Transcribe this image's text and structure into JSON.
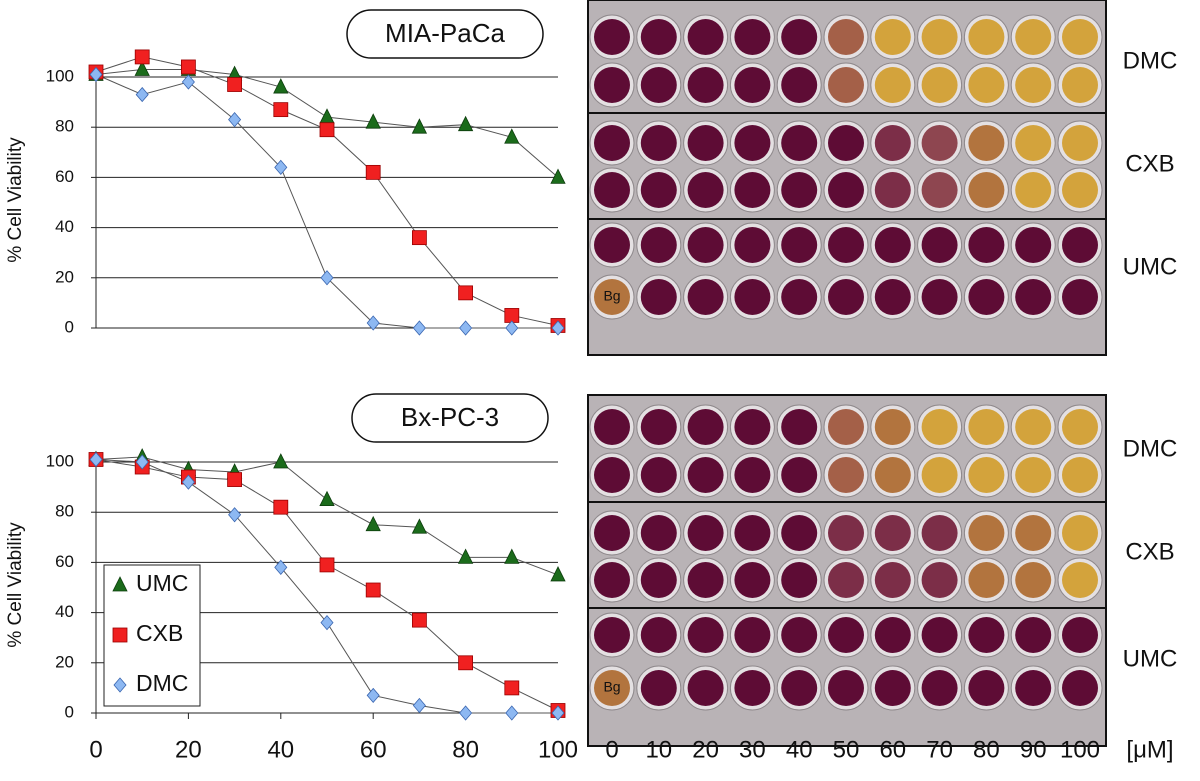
{
  "chart_data": [
    {
      "type": "line",
      "title": "MIA-PaCa",
      "y_label": "% Cell Viability",
      "x": [
        0,
        10,
        20,
        30,
        40,
        50,
        60,
        70,
        80,
        90,
        100
      ],
      "xlim": [
        0,
        100
      ],
      "ylim": [
        0,
        100
      ],
      "yticks": [
        0,
        20,
        40,
        60,
        80,
        100
      ],
      "grid": true,
      "series": [
        {
          "name": "UMC",
          "color": "#1b6b1b",
          "marker": "triangle",
          "values": [
            101,
            103,
            103,
            101,
            96,
            84,
            82,
            80,
            81,
            76,
            60
          ]
        },
        {
          "name": "CXB",
          "color": "#f02020",
          "marker": "square",
          "values": [
            102,
            108,
            104,
            97,
            87,
            79,
            62,
            36,
            14,
            5,
            1
          ]
        },
        {
          "name": "DMC",
          "color": "#8db8f2",
          "marker": "diamond",
          "values": [
            101,
            93,
            98,
            83,
            64,
            20,
            2,
            0,
            0,
            0,
            0
          ]
        }
      ]
    },
    {
      "type": "line",
      "title": "Bx-PC-3",
      "y_label": "% Cell Viability",
      "x": [
        0,
        10,
        20,
        30,
        40,
        50,
        60,
        70,
        80,
        90,
        100
      ],
      "xlim": [
        0,
        100
      ],
      "ylim": [
        0,
        100
      ],
      "yticks": [
        0,
        20,
        40,
        60,
        80,
        100
      ],
      "xticks": [
        0,
        20,
        40,
        60,
        80,
        100
      ],
      "grid": true,
      "legend": "lower-left",
      "series": [
        {
          "name": "UMC",
          "color": "#1b6b1b",
          "marker": "triangle",
          "values": [
            101,
            102,
            97,
            96,
            100,
            85,
            75,
            74,
            62,
            62,
            55
          ]
        },
        {
          "name": "CXB",
          "color": "#f02020",
          "marker": "square",
          "values": [
            101,
            98,
            94,
            93,
            82,
            59,
            49,
            37,
            20,
            10,
            1
          ]
        },
        {
          "name": "DMC",
          "color": "#8db8f2",
          "marker": "diamond",
          "values": [
            101,
            100,
            92,
            79,
            58,
            36,
            7,
            3,
            0,
            0,
            0
          ]
        }
      ]
    }
  ],
  "plates": {
    "rows": [
      "DMC",
      "CXB",
      "UMC"
    ],
    "concentrations": [
      "0",
      "10",
      "20",
      "30",
      "40",
      "50",
      "60",
      "70",
      "80",
      "90",
      "100"
    ],
    "unit": "[μM]",
    "background": "Bg"
  }
}
